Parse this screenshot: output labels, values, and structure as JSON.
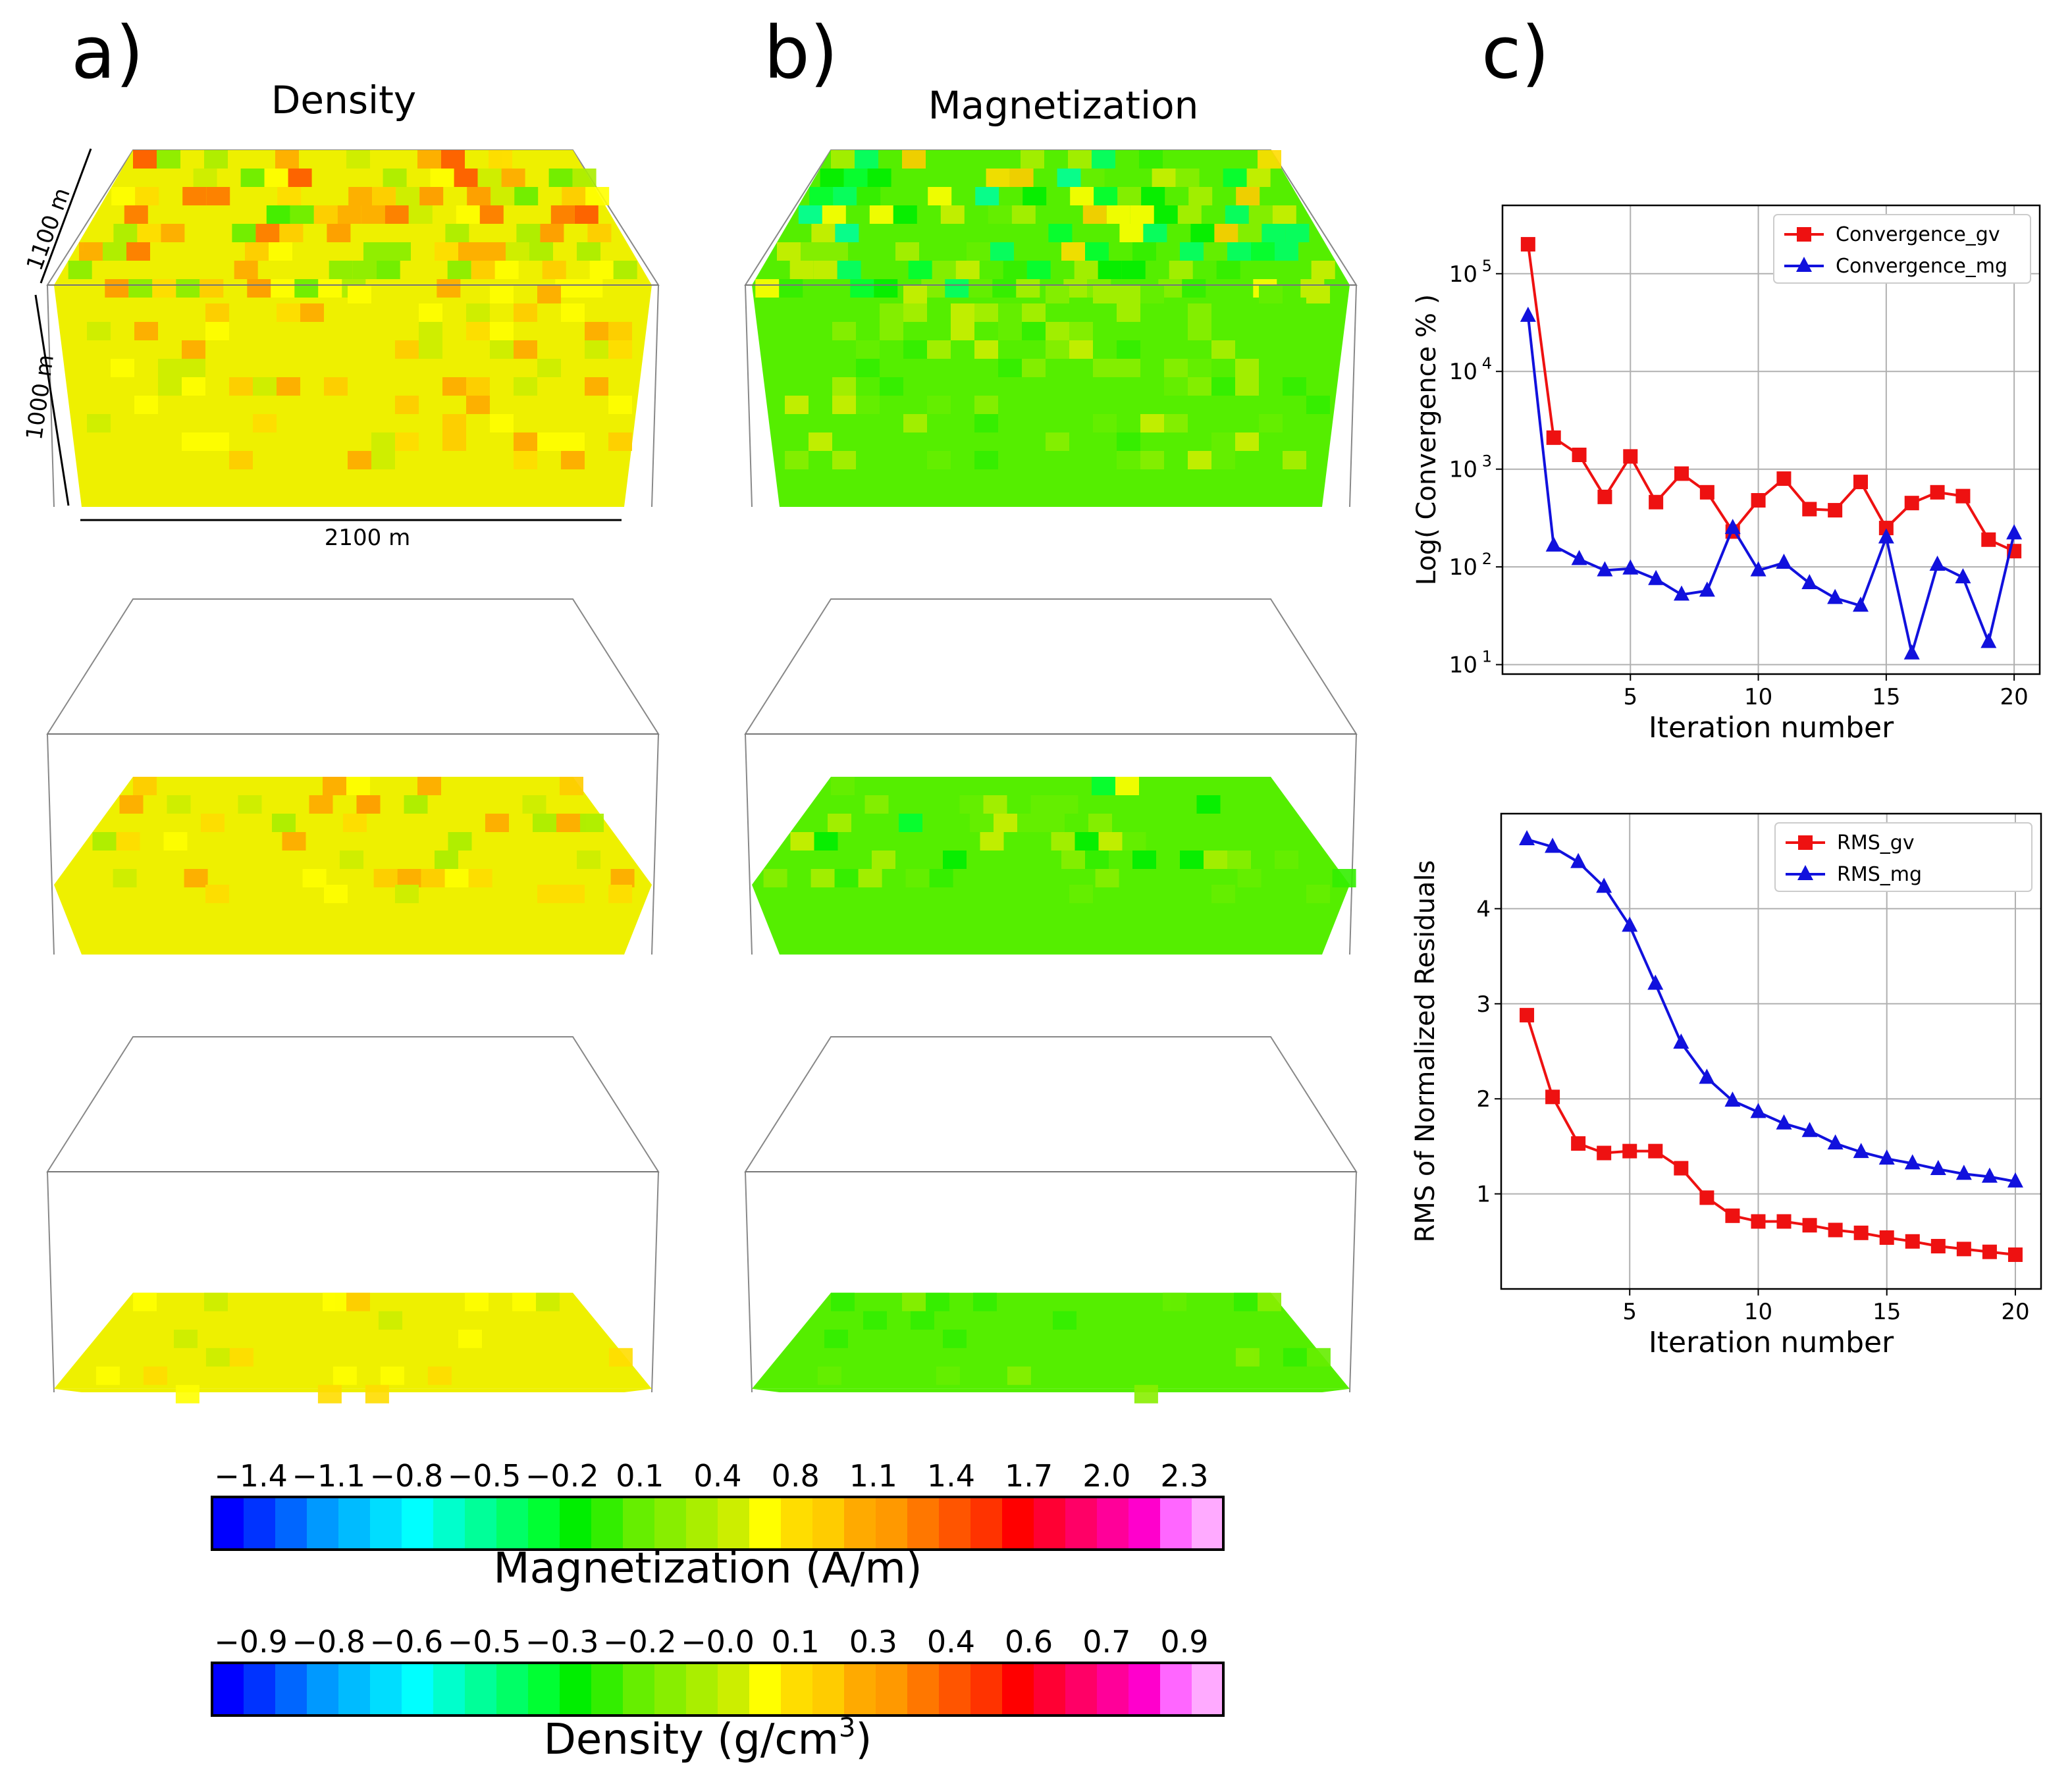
{
  "panels": {
    "a": {
      "letter": "a)",
      "title": "Density"
    },
    "b": {
      "letter": "b)",
      "title": "Magnetization"
    },
    "c": {
      "letter": "c)"
    }
  },
  "dimensions": {
    "depth_top": "1100 m",
    "depth_side": "1000 m",
    "width": "2100 m"
  },
  "colors": {
    "gv": "#ee1111",
    "mg": "#1111dd",
    "grid": "#b0b0b0",
    "density_base": "#eef000",
    "magnetization_base": "#55ee00",
    "colormap": [
      "#0000ff",
      "#0033ff",
      "#0066ff",
      "#0099ff",
      "#00bbff",
      "#00ddff",
      "#00ffff",
      "#00ffcc",
      "#00ff99",
      "#00ff66",
      "#00ff33",
      "#00ee00",
      "#33ee00",
      "#66ee00",
      "#88ee00",
      "#aaee00",
      "#ccee00",
      "#ffff00",
      "#ffdd00",
      "#ffcc00",
      "#ffaa00",
      "#ff9900",
      "#ff7700",
      "#ff5500",
      "#ff3300",
      "#ff0000",
      "#ff0033",
      "#ff0066",
      "#ff0099",
      "#ff00cc",
      "#ff66ff",
      "#ffaaff"
    ]
  },
  "chart_data": [
    {
      "type": "line",
      "name": "convergence",
      "yscale": "log",
      "title": "",
      "xlabel": "Iteration number",
      "ylabel": "Log( Convergence % )",
      "xlim": [
        0,
        21
      ],
      "ylim": [
        8,
        500000
      ],
      "xticks": [
        5,
        10,
        15,
        20
      ],
      "xtick_labels": [
        "5",
        "10",
        "15",
        "20"
      ],
      "yticks": [
        10,
        100,
        1000,
        10000,
        100000
      ],
      "ytick_labels": [
        "10^1",
        "10^2",
        "10^3",
        "10^4",
        "10^5"
      ],
      "grid": true,
      "legend": "top-right",
      "x": [
        1,
        2,
        3,
        4,
        5,
        6,
        7,
        8,
        9,
        10,
        11,
        12,
        13,
        14,
        15,
        16,
        17,
        18,
        19,
        20
      ],
      "series": [
        {
          "name": "Convergence_gv",
          "color": "#ee1111",
          "marker": "square",
          "values": [
            200000,
            2100,
            1400,
            520,
            1350,
            460,
            900,
            580,
            230,
            480,
            800,
            390,
            380,
            740,
            250,
            450,
            580,
            530,
            190,
            145
          ]
        },
        {
          "name": "Convergence_mg",
          "color": "#1111dd",
          "marker": "triangle",
          "values": [
            37000,
            165,
            120,
            92,
            96,
            75,
            52,
            57,
            250,
            92,
            110,
            68,
            48,
            40,
            200,
            13,
            105,
            78,
            17,
            220
          ]
        }
      ]
    },
    {
      "type": "line",
      "name": "rms",
      "yscale": "linear",
      "title": "",
      "xlabel": "Iteration number",
      "ylabel": "RMS of Normalized Residuals",
      "xlim": [
        0,
        21
      ],
      "ylim": [
        0,
        5
      ],
      "xticks": [
        5,
        10,
        15,
        20
      ],
      "xtick_labels": [
        "5",
        "10",
        "15",
        "20"
      ],
      "yticks": [
        1,
        2,
        3,
        4
      ],
      "ytick_labels": [
        "1",
        "2",
        "3",
        "4"
      ],
      "grid": true,
      "legend": "top-right",
      "x": [
        1,
        2,
        3,
        4,
        5,
        6,
        7,
        8,
        9,
        10,
        11,
        12,
        13,
        14,
        15,
        16,
        17,
        18,
        19,
        20
      ],
      "series": [
        {
          "name": "RMS_gv",
          "color": "#ee1111",
          "marker": "square",
          "values": [
            2.88,
            2.02,
            1.53,
            1.43,
            1.45,
            1.45,
            1.27,
            0.96,
            0.77,
            0.71,
            0.71,
            0.67,
            0.62,
            0.59,
            0.54,
            0.5,
            0.45,
            0.42,
            0.39,
            0.36
          ]
        },
        {
          "name": "RMS_mg",
          "color": "#1111dd",
          "marker": "triangle",
          "values": [
            4.73,
            4.65,
            4.49,
            4.23,
            3.82,
            3.21,
            2.59,
            2.22,
            1.98,
            1.86,
            1.74,
            1.66,
            1.53,
            1.44,
            1.37,
            1.32,
            1.26,
            1.21,
            1.18,
            1.13
          ]
        }
      ]
    },
    {
      "type": "colorbar",
      "name": "magnetization_colorbar",
      "label": "Magnetization (A/m)",
      "tick_labels": [
        "−1.4",
        "−1.1",
        "−0.8",
        "−0.5",
        "−0.2",
        "0.1",
        "0.4",
        "0.8",
        "1.1",
        "1.4",
        "1.7",
        "2.0",
        "2.3"
      ]
    },
    {
      "type": "colorbar",
      "name": "density_colorbar",
      "label": "Density (g/cm",
      "label_sup": "3",
      "label_end": ")",
      "tick_labels": [
        "−0.9",
        "−0.8",
        "−0.6",
        "−0.5",
        "−0.3",
        "−0.2",
        "−0.0",
        "0.1",
        "0.3",
        "0.4",
        "0.6",
        "0.7",
        "0.9"
      ]
    }
  ]
}
